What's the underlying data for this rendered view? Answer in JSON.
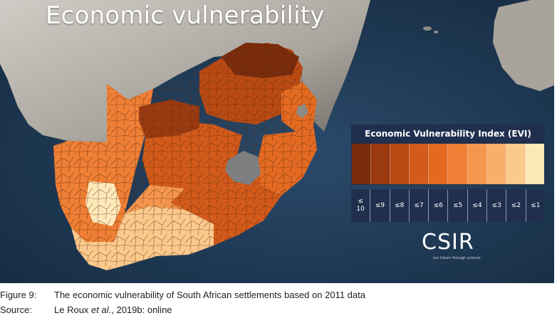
{
  "map": {
    "title": "Economic vulnerability",
    "colors": {
      "ocean": "#1d3550",
      "land": "#bdbab4",
      "land_dark": "#8f8c86",
      "lesotho": "#7d7e80",
      "boundary": "#4a2a16"
    }
  },
  "legend": {
    "title": "Economic Vulnerability Index (EVI)",
    "classes": [
      {
        "label": "≤\n10",
        "color": "#7a2c0c"
      },
      {
        "label": "≤9",
        "color": "#9a3a10"
      },
      {
        "label": "≤8",
        "color": "#b94a14"
      },
      {
        "label": "≤7",
        "color": "#d25a1a"
      },
      {
        "label": "≤6",
        "color": "#e46a22"
      },
      {
        "label": "≤5",
        "color": "#ef7f34"
      },
      {
        "label": "≤4",
        "color": "#f5964d"
      },
      {
        "label": "≤3",
        "color": "#f9ae6b"
      },
      {
        "label": "≤2",
        "color": "#fcc98d"
      },
      {
        "label": "≤1",
        "color": "#fde8b8"
      }
    ]
  },
  "logo": {
    "mark": "CSIR",
    "tagline": "our future through science"
  },
  "caption": {
    "figure_key": "Figure 9:",
    "figure_text": "The economic vulnerability of South African settlements based on 2011 data",
    "source_key": "Source:",
    "source_text_a": "Le Roux ",
    "source_text_em": "et al",
    "source_text_b": "., 2019b: online"
  }
}
